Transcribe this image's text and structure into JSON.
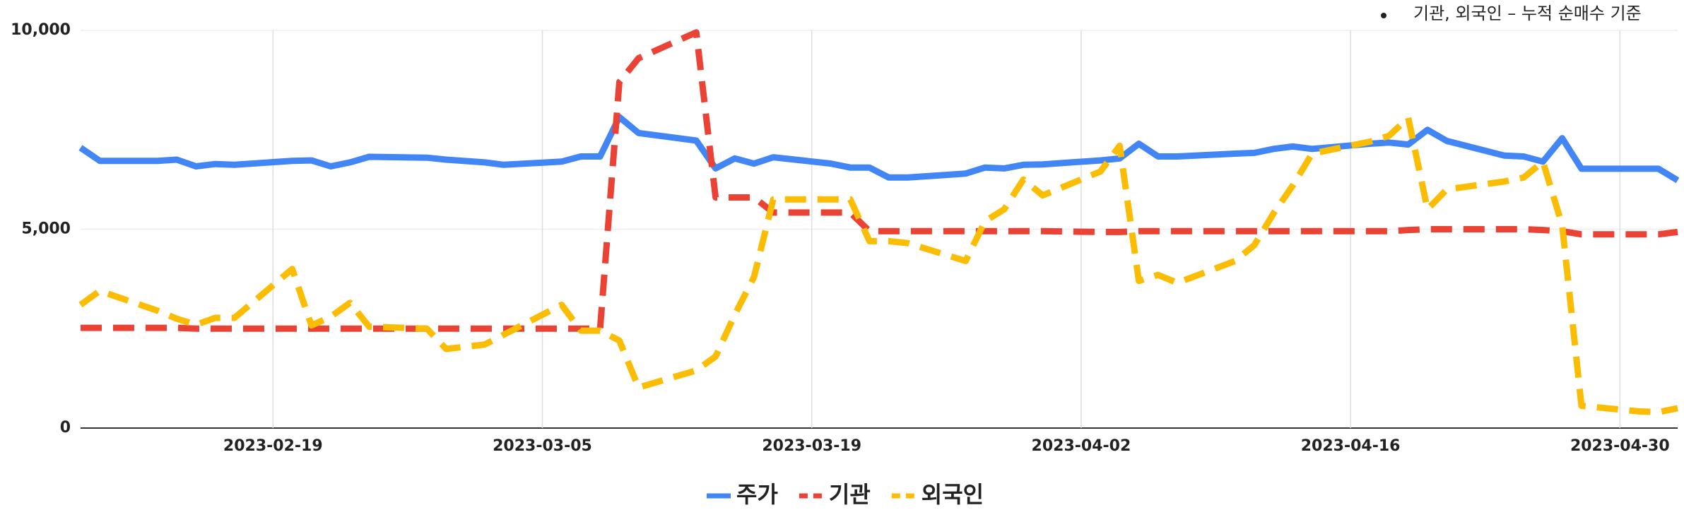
{
  "chart_data": {
    "type": "line",
    "annotation": "기관, 외국인 – 누적 순매수 기준",
    "x": [
      "2023-02-09",
      "2023-02-10",
      "2023-02-13",
      "2023-02-14",
      "2023-02-15",
      "2023-02-16",
      "2023-02-17",
      "2023-02-20",
      "2023-02-21",
      "2023-02-22",
      "2023-02-23",
      "2023-02-24",
      "2023-02-27",
      "2023-02-28",
      "2023-03-02",
      "2023-03-03",
      "2023-03-06",
      "2023-03-07",
      "2023-03-08",
      "2023-03-09",
      "2023-03-10",
      "2023-03-13",
      "2023-03-14",
      "2023-03-15",
      "2023-03-16",
      "2023-03-17",
      "2023-03-20",
      "2023-03-21",
      "2023-03-22",
      "2023-03-23",
      "2023-03-24",
      "2023-03-27",
      "2023-03-28",
      "2023-03-29",
      "2023-03-30",
      "2023-03-31",
      "2023-04-03",
      "2023-04-04",
      "2023-04-05",
      "2023-04-06",
      "2023-04-07",
      "2023-04-10",
      "2023-04-11",
      "2023-04-12",
      "2023-04-13",
      "2023-04-14",
      "2023-04-17",
      "2023-04-18",
      "2023-04-19",
      "2023-04-20",
      "2023-04-21",
      "2023-04-24",
      "2023-04-25",
      "2023-04-26",
      "2023-04-27",
      "2023-04-28",
      "2023-05-01",
      "2023-05-02",
      "2023-05-03"
    ],
    "series": [
      {
        "name": "주가",
        "color": "#4285f4",
        "dashed": false,
        "values": [
          7050,
          6720,
          6720,
          6750,
          6580,
          6640,
          6620,
          6720,
          6730,
          6580,
          6680,
          6820,
          6800,
          6750,
          6680,
          6620,
          6700,
          6830,
          6830,
          7820,
          7420,
          7230,
          6530,
          6780,
          6650,
          6810,
          6650,
          6550,
          6550,
          6300,
          6300,
          6400,
          6550,
          6530,
          6620,
          6630,
          6730,
          6780,
          7150,
          6830,
          6830,
          6900,
          6920,
          7020,
          7080,
          7020,
          7150,
          7180,
          7130,
          7500,
          7220,
          6850,
          6830,
          6700,
          7290,
          6520,
          6520,
          6520,
          6230
        ]
      },
      {
        "name": "기관",
        "color": "#ea4335",
        "dashed": true,
        "values": [
          2520,
          2520,
          2520,
          2520,
          2500,
          2500,
          2500,
          2500,
          2500,
          2500,
          2500,
          2500,
          2500,
          2500,
          2500,
          2500,
          2500,
          2500,
          2500,
          8700,
          9300,
          9950,
          5800,
          5800,
          5800,
          5420,
          5420,
          5420,
          4950,
          4950,
          4950,
          4950,
          4950,
          4950,
          4950,
          4950,
          4930,
          4930,
          4950,
          4950,
          4950,
          4950,
          4950,
          4950,
          4950,
          4950,
          4950,
          4950,
          4980,
          5000,
          5000,
          5000,
          5000,
          4980,
          4950,
          4870,
          4870,
          4870,
          4930
        ]
      },
      {
        "name": "외국인",
        "color": "#fbbc04",
        "dashed": true,
        "values": [
          3100,
          3450,
          2950,
          2750,
          2600,
          2770,
          2770,
          4000,
          2580,
          2800,
          3150,
          2550,
          2500,
          1990,
          2100,
          2350,
          3100,
          2450,
          2450,
          2200,
          1020,
          1450,
          1800,
          2850,
          3800,
          5750,
          5750,
          5750,
          4700,
          4700,
          4650,
          4200,
          5200,
          5500,
          6250,
          5850,
          6450,
          7100,
          3700,
          3850,
          3650,
          4200,
          4600,
          5400,
          6100,
          6900,
          7200,
          7350,
          7800,
          5500,
          6000,
          6200,
          6300,
          6700,
          5100,
          560,
          420,
          400,
          500
        ]
      }
    ],
    "xlim": [
      "2023-02-09",
      "2023-05-03"
    ],
    "xticks": [
      "2023-02-19",
      "2023-03-05",
      "2023-03-19",
      "2023-04-02",
      "2023-04-16",
      "2023-04-30"
    ],
    "ylim": [
      0,
      10000
    ],
    "yticks": [
      0,
      {
        "value": 5000,
        "label": "5,000"
      },
      {
        "value": 10000,
        "label": "10,000"
      }
    ],
    "grid": true
  }
}
